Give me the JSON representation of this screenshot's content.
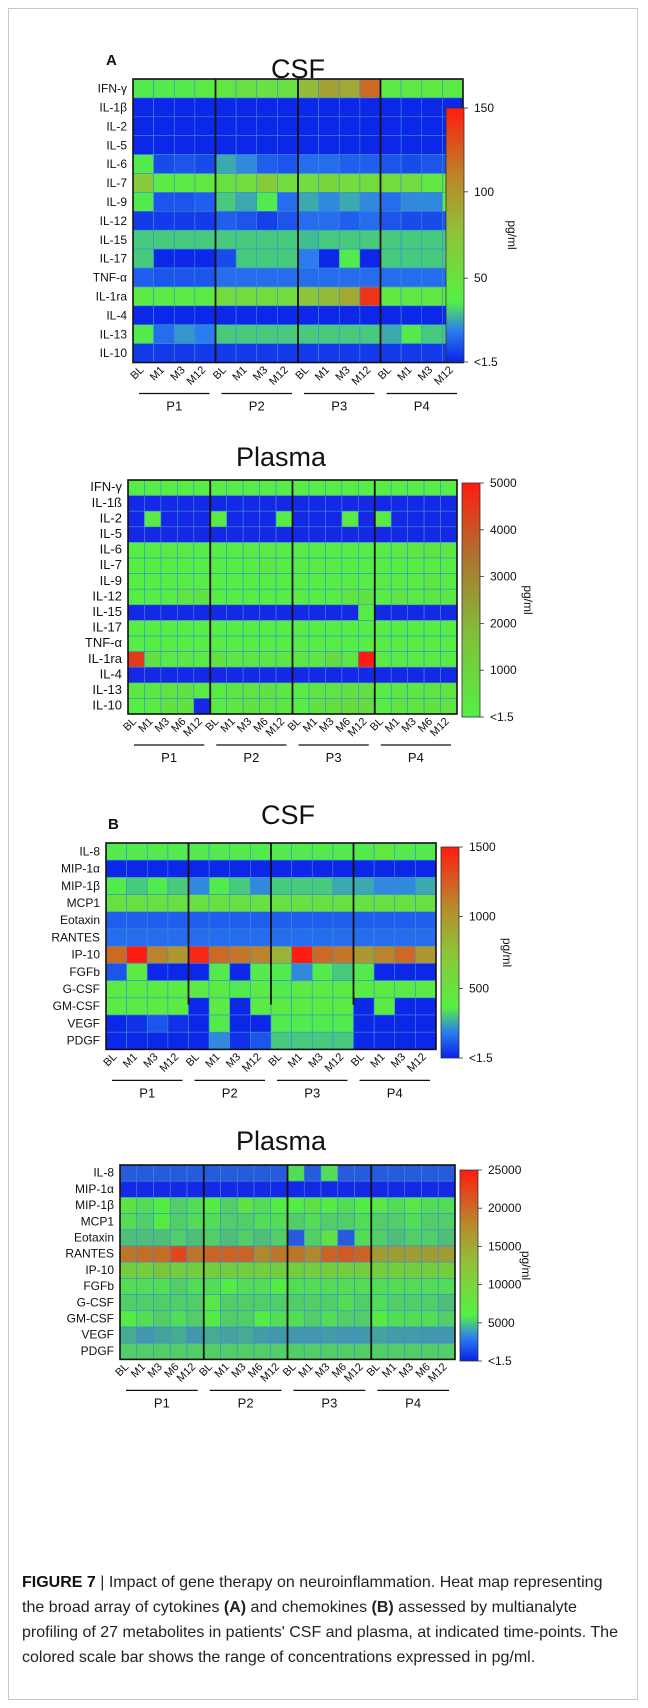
{
  "chart_data": [
    {
      "type": "heatmap",
      "panel_label": "A",
      "title": "CSF",
      "rows": [
        "IFN-γ",
        "IL-1β",
        "IL-2",
        "IL-5",
        "IL-6",
        "IL-7",
        "IL-9",
        "IL-12",
        "IL-15",
        "IL-17",
        "TNF-α",
        "IL-1ra",
        "IL-4",
        "IL-13",
        "IL-10"
      ],
      "columns": [
        "BL",
        "M1",
        "M3",
        "M12",
        "BL",
        "M1",
        "M3",
        "M12",
        "BL",
        "M1",
        "M3",
        "M12",
        "BL",
        "M1",
        "M3",
        "M12"
      ],
      "groups": [
        "P1",
        "P2",
        "P3",
        "P4"
      ],
      "scale": {
        "label": "pg/ml",
        "ticks": [
          "150",
          "100",
          "50",
          "<1.5"
        ],
        "range": [
          0,
          150
        ]
      },
      "values": [
        [
          35,
          35,
          35,
          40,
          45,
          48,
          48,
          50,
          80,
          95,
          90,
          120,
          40,
          42,
          42,
          40
        ],
        [
          1,
          1,
          1,
          1,
          1,
          1,
          1,
          1,
          1,
          1,
          1,
          1,
          1,
          1,
          1,
          1
        ],
        [
          1,
          1,
          1,
          1,
          1,
          1,
          1,
          1,
          1,
          1,
          1,
          1,
          1,
          1,
          1,
          1
        ],
        [
          1,
          1,
          1,
          1,
          1,
          1,
          1,
          1,
          1,
          1,
          1,
          1,
          1,
          1,
          1,
          1
        ],
        [
          35,
          8,
          10,
          8,
          25,
          20,
          12,
          10,
          15,
          15,
          12,
          12,
          10,
          8,
          10,
          10
        ],
        [
          70,
          40,
          40,
          45,
          50,
          55,
          70,
          55,
          55,
          60,
          55,
          55,
          55,
          55,
          45,
          50
        ],
        [
          35,
          10,
          10,
          12,
          30,
          25,
          35,
          15,
          25,
          20,
          25,
          20,
          15,
          20,
          20,
          40
        ],
        [
          5,
          5,
          5,
          5,
          12,
          10,
          6,
          10,
          15,
          15,
          12,
          15,
          10,
          8,
          8,
          10
        ],
        [
          30,
          30,
          30,
          30,
          30,
          30,
          30,
          30,
          28,
          30,
          30,
          30,
          30,
          30,
          30,
          30
        ],
        [
          30,
          1,
          1,
          1,
          8,
          30,
          30,
          30,
          18,
          1,
          35,
          1,
          30,
          30,
          30,
          30
        ],
        [
          12,
          10,
          10,
          10,
          15,
          15,
          15,
          15,
          15,
          15,
          15,
          15,
          15,
          15,
          15,
          15
        ],
        [
          40,
          40,
          40,
          40,
          55,
          55,
          55,
          55,
          75,
          80,
          90,
          140,
          45,
          45,
          45,
          45
        ],
        [
          1,
          1,
          1,
          1,
          1,
          1,
          1,
          1,
          1,
          1,
          1,
          1,
          1,
          1,
          1,
          1
        ],
        [
          35,
          15,
          22,
          18,
          30,
          30,
          30,
          30,
          30,
          30,
          30,
          30,
          25,
          35,
          30,
          30
        ],
        [
          5,
          5,
          5,
          5,
          5,
          5,
          5,
          5,
          5,
          5,
          5,
          5,
          5,
          5,
          5,
          5
        ]
      ]
    },
    {
      "type": "heatmap",
      "title": "Plasma",
      "rows": [
        "IFN-γ",
        "IL-1ß",
        "IL-2",
        "IL-5",
        "IL-6",
        "IL-7",
        "IL-9",
        "IL-12",
        "IL-15",
        "IL-17",
        "TNF-α",
        "IL-1ra",
        "IL-4",
        "IL-13",
        "IL-10"
      ],
      "columns": [
        "BL",
        "M1",
        "M3",
        "M6",
        "M12",
        "BL",
        "M1",
        "M3",
        "M6",
        "M12",
        "BL",
        "M1",
        "M3",
        "M6",
        "M12",
        "BL",
        "M1",
        "M3",
        "M6",
        "M12"
      ],
      "groups": [
        "P1",
        "P2",
        "P3",
        "P4"
      ],
      "scale": {
        "label": "pg/ml",
        "ticks": [
          "5000",
          "4000",
          "3000",
          "2000",
          "1000",
          "<1.5"
        ],
        "range": [
          0,
          5000
        ]
      },
      "values": [
        [
          600,
          600,
          600,
          600,
          600,
          600,
          600,
          600,
          600,
          600,
          600,
          600,
          600,
          600,
          600,
          600,
          600,
          600,
          600,
          600
        ],
        [
          20,
          20,
          20,
          20,
          20,
          20,
          20,
          20,
          20,
          20,
          20,
          20,
          20,
          20,
          20,
          20,
          20,
          20,
          20,
          20
        ],
        [
          20,
          700,
          20,
          20,
          20,
          700,
          20,
          20,
          20,
          600,
          20,
          20,
          20,
          700,
          20,
          700,
          20,
          20,
          20,
          20
        ],
        [
          20,
          20,
          20,
          20,
          20,
          20,
          20,
          20,
          20,
          20,
          20,
          20,
          20,
          20,
          20,
          20,
          20,
          20,
          20,
          20
        ],
        [
          600,
          600,
          700,
          700,
          600,
          600,
          600,
          700,
          700,
          600,
          600,
          600,
          600,
          600,
          600,
          650,
          700,
          800,
          900,
          800
        ],
        [
          600,
          600,
          600,
          600,
          600,
          600,
          600,
          600,
          800,
          600,
          600,
          700,
          600,
          600,
          600,
          600,
          600,
          600,
          600,
          600
        ],
        [
          600,
          600,
          600,
          600,
          600,
          600,
          600,
          600,
          600,
          600,
          600,
          600,
          600,
          600,
          600,
          700,
          650,
          650,
          800,
          650
        ],
        [
          600,
          600,
          600,
          900,
          1000,
          600,
          600,
          600,
          600,
          600,
          600,
          600,
          600,
          900,
          1000,
          600,
          900,
          700,
          800,
          800
        ],
        [
          20,
          20,
          20,
          20,
          20,
          20,
          20,
          20,
          20,
          20,
          20,
          20,
          20,
          20,
          600,
          20,
          20,
          20,
          20,
          20
        ],
        [
          600,
          600,
          600,
          600,
          600,
          600,
          600,
          600,
          600,
          600,
          600,
          600,
          600,
          600,
          600,
          600,
          600,
          600,
          600,
          600
        ],
        [
          600,
          600,
          600,
          600,
          600,
          600,
          600,
          600,
          600,
          600,
          600,
          600,
          600,
          600,
          600,
          600,
          600,
          600,
          600,
          600
        ],
        [
          4500,
          1000,
          700,
          800,
          700,
          1000,
          800,
          800,
          800,
          800,
          800,
          800,
          1200,
          800,
          5000,
          700,
          700,
          700,
          700,
          700
        ],
        [
          20,
          20,
          20,
          20,
          20,
          20,
          20,
          20,
          20,
          20,
          20,
          20,
          20,
          20,
          20,
          20,
          20,
          20,
          20,
          20
        ],
        [
          800,
          800,
          900,
          1000,
          700,
          700,
          900,
          900,
          1000,
          800,
          700,
          900,
          900,
          1000,
          1100,
          600,
          800,
          800,
          900,
          900
        ],
        [
          600,
          700,
          1000,
          1000,
          20,
          700,
          800,
          1000,
          900,
          900,
          600,
          1000,
          1100,
          1200,
          1200,
          600,
          900,
          900,
          1000,
          900
        ]
      ]
    },
    {
      "type": "heatmap",
      "panel_label": "B",
      "title": "CSF",
      "rows": [
        "IL-8",
        "MIP-1α",
        "MIP-1β",
        "MCP1",
        "Eotaxin",
        "RANTES",
        "IP-10",
        "FGFb",
        "G-CSF",
        "GM-CSF",
        "VEGF",
        "PDGF"
      ],
      "columns": [
        "BL",
        "M1",
        "M3",
        "M12",
        "BL",
        "M1",
        "M3",
        "M12",
        "BL",
        "M1",
        "M3",
        "M12",
        "BL",
        "M1",
        "M3",
        "M12"
      ],
      "groups": [
        "P1",
        "P2",
        "P3",
        "P4"
      ],
      "scale": {
        "label": "pg/ml",
        "ticks": [
          "1500",
          "1000",
          "500",
          "<1.5"
        ],
        "range": [
          0,
          1500
        ]
      },
      "values": [
        [
          350,
          350,
          350,
          350,
          350,
          350,
          350,
          350,
          350,
          350,
          350,
          350,
          350,
          450,
          350,
          350
        ],
        [
          10,
          10,
          10,
          10,
          10,
          10,
          10,
          10,
          10,
          10,
          10,
          10,
          10,
          10,
          10,
          10
        ],
        [
          350,
          300,
          350,
          300,
          200,
          350,
          300,
          200,
          300,
          300,
          300,
          250,
          250,
          200,
          200,
          250
        ],
        [
          500,
          500,
          500,
          500,
          500,
          500,
          500,
          500,
          500,
          500,
          500,
          500,
          500,
          500,
          500,
          500
        ],
        [
          120,
          120,
          120,
          120,
          120,
          120,
          120,
          120,
          120,
          120,
          120,
          120,
          120,
          120,
          120,
          120
        ],
        [
          150,
          150,
          150,
          150,
          150,
          150,
          150,
          150,
          150,
          150,
          150,
          150,
          150,
          150,
          150,
          150
        ],
        [
          1200,
          1500,
          1100,
          1000,
          1450,
          1200,
          1150,
          1100,
          850,
          1500,
          1200,
          1150,
          1000,
          1100,
          1200,
          1000
        ],
        [
          100,
          400,
          10,
          10,
          10,
          350,
          10,
          350,
          350,
          200,
          350,
          300,
          350,
          10,
          10,
          10
        ],
        [
          400,
          400,
          400,
          400,
          400,
          400,
          350,
          400,
          350,
          400,
          400,
          400,
          400,
          400,
          400,
          400
        ],
        [
          400,
          400,
          400,
          400,
          10,
          400,
          10,
          400,
          400,
          400,
          400,
          400,
          10,
          400,
          10,
          10
        ],
        [
          10,
          30,
          100,
          30,
          10,
          350,
          10,
          10,
          350,
          350,
          350,
          350,
          10,
          10,
          10,
          10
        ],
        [
          10,
          10,
          10,
          10,
          10,
          200,
          30,
          100,
          300,
          300,
          300,
          300,
          10,
          10,
          10,
          10
        ]
      ]
    },
    {
      "type": "heatmap",
      "title": "Plasma",
      "rows": [
        "IL-8",
        "MIP-1α",
        "MIP-1β",
        "MCP1",
        "Eotaxin",
        "RANTES",
        "IP-10",
        "FGFb",
        "G-CSF",
        "GM-CSF",
        "VEGF",
        "PDGF"
      ],
      "columns": [
        "BL",
        "M1",
        "M3",
        "M6",
        "M12",
        "BL",
        "M1",
        "M3",
        "M6",
        "M12",
        "BL",
        "M1",
        "M3",
        "M6",
        "M12",
        "BL",
        "M1",
        "M3",
        "M6",
        "M12"
      ],
      "groups": [
        "P1",
        "P2",
        "P3",
        "P4"
      ],
      "scale": {
        "label": "pg/ml",
        "ticks": [
          "25000",
          "20000",
          "15000",
          "10000",
          "5000",
          "<1.5"
        ],
        "range": [
          0,
          25000
        ]
      },
      "values": [
        [
          300,
          300,
          300,
          300,
          300,
          300,
          300,
          300,
          300,
          300,
          2500,
          300,
          2500,
          300,
          300,
          300,
          300,
          300,
          300,
          300
        ],
        [
          100,
          100,
          100,
          100,
          100,
          100,
          100,
          100,
          100,
          100,
          100,
          100,
          100,
          100,
          100,
          100,
          100,
          100,
          100,
          100
        ],
        [
          4000,
          2500,
          3000,
          2000,
          2500,
          3000,
          2000,
          4000,
          2500,
          3000,
          3000,
          4000,
          3000,
          2500,
          3000,
          3500,
          2500,
          3500,
          2500,
          2500
        ],
        [
          2500,
          2000,
          3000,
          2000,
          2500,
          2500,
          2000,
          2000,
          2500,
          2500,
          2000,
          2500,
          2000,
          2000,
          2500,
          2000,
          2000,
          2500,
          2000,
          2000
        ],
        [
          1500,
          1500,
          1500,
          2000,
          1500,
          2000,
          1500,
          2000,
          1500,
          2000,
          300,
          2000,
          4000,
          300,
          2500,
          2000,
          1500,
          2000,
          2000,
          1500
        ],
        [
          15000,
          16000,
          16000,
          20000,
          15000,
          17000,
          17000,
          17000,
          13000,
          15000,
          15000,
          13000,
          17000,
          18000,
          17000,
          11000,
          11000,
          11000,
          11000,
          11000
        ],
        [
          6000,
          6000,
          7000,
          6000,
          6000,
          6000,
          6000,
          6000,
          6000,
          6000,
          6000,
          6000,
          6000,
          6000,
          6000,
          6000,
          6000,
          6000,
          6000,
          6000
        ],
        [
          2500,
          2500,
          2500,
          2000,
          2500,
          2500,
          3000,
          2500,
          2500,
          3000,
          2500,
          2500,
          2500,
          2500,
          2500,
          2500,
          2500,
          2500,
          2500,
          2500
        ],
        [
          2000,
          2000,
          2000,
          2000,
          2000,
          3500,
          2000,
          2000,
          2000,
          2000,
          2000,
          2000,
          2000,
          2500,
          2000,
          2500,
          2000,
          2000,
          2000,
          1500
        ],
        [
          3000,
          2500,
          2000,
          2500,
          2000,
          3000,
          2000,
          2000,
          3000,
          2500,
          2500,
          2000,
          2500,
          2000,
          2000,
          3000,
          2500,
          2500,
          2500,
          2000
        ],
        [
          1000,
          500,
          800,
          1000,
          500,
          1000,
          800,
          1000,
          600,
          500,
          500,
          500,
          600,
          500,
          500,
          800,
          600,
          600,
          500,
          500
        ],
        [
          2000,
          2000,
          2000,
          2000,
          2000,
          2000,
          2000,
          2000,
          2000,
          2000,
          2000,
          2000,
          2000,
          2000,
          2000,
          2000,
          2000,
          2000,
          2000,
          2000
        ]
      ]
    }
  ],
  "caption": {
    "figure_no": "FIGURE 7",
    "separator": " | ",
    "text_1": "Impact of gene therapy on neuroinflammation. Heat map representing the broad array of cytokines ",
    "label_a": "(A)",
    "text_2": " and chemokines ",
    "label_b": "(B)",
    "text_3": " assessed by multianalyte profiling of 27 metabolites in patients' CSF and plasma, at indicated time-points. The colored scale bar shows the range of concentrations expressed in pg/ml."
  }
}
